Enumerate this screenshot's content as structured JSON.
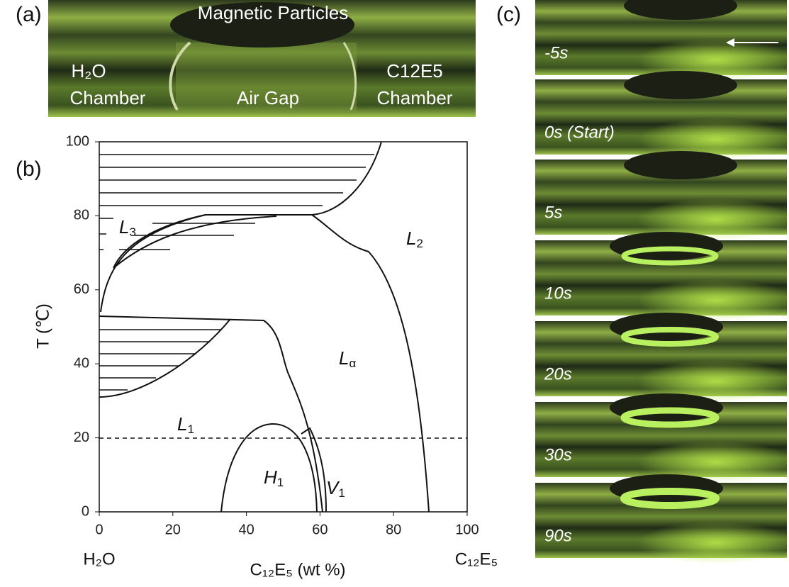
{
  "panel_a": {
    "label": "(a)",
    "top": "Magnetic Particles",
    "left": [
      "H₂O",
      "Chamber"
    ],
    "middle": "Air Gap",
    "right": [
      "C12E5",
      "Chamber"
    ]
  },
  "panel_b": {
    "label": "(b)",
    "y_axis_label": "T (℃)",
    "x_axis_label": "C₁₂E₅ (wt %)",
    "x_left": "H₂O",
    "x_right": "C₁₂E₅",
    "xticks": [
      0,
      20,
      40,
      60,
      80,
      100
    ],
    "yticks": [
      0,
      20,
      40,
      60,
      80,
      100
    ],
    "phases": [
      {
        "main": "L",
        "sub": "3"
      },
      {
        "main": "L",
        "sub": "2"
      },
      {
        "main": "L",
        "sub": "α"
      },
      {
        "main": "L",
        "sub": "1"
      },
      {
        "main": "H",
        "sub": "1"
      },
      {
        "main": "V",
        "sub": "1"
      }
    ]
  },
  "panel_c": {
    "label": "(c)",
    "frames": [
      "-5s",
      "0s (Start)",
      "5s",
      "10s",
      "20s",
      "30s",
      "90s"
    ]
  }
}
